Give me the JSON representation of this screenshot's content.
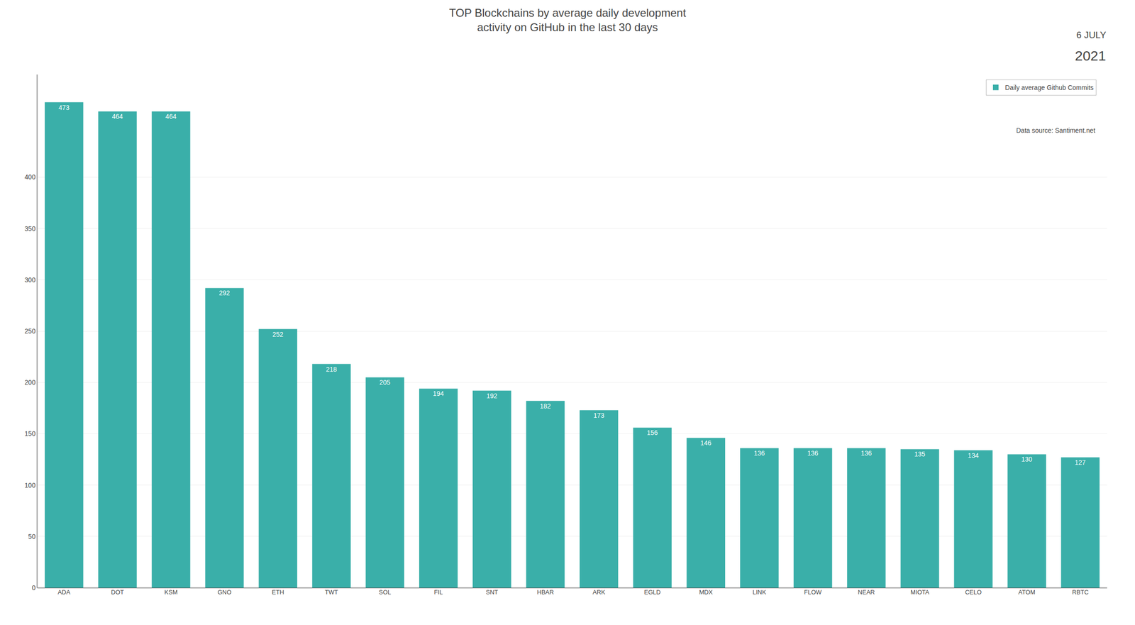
{
  "chart_data": {
    "type": "bar",
    "title": "TOP Blockchains by average daily development\nactivity on GitHub in the last 30 days",
    "categories": [
      "ADA",
      "DOT",
      "KSM",
      "GNO",
      "ETH",
      "TWT",
      "SOL",
      "FIL",
      "SNT",
      "HBAR",
      "ARK",
      "EGLD",
      "MDX",
      "LINK",
      "FLOW",
      "NEAR",
      "MIOTA",
      "CELO",
      "ATOM",
      "RBTC"
    ],
    "series": [
      {
        "name": "Daily average Github Commits",
        "color": "#3aafa9",
        "values": [
          473,
          464,
          464,
          292,
          252,
          218,
          205,
          194,
          192,
          182,
          173,
          156,
          146,
          136,
          136,
          136,
          135,
          134,
          130,
          127
        ]
      }
    ],
    "ylim": [
      0,
      500
    ],
    "yticks": [
      0,
      50,
      100,
      150,
      200,
      250,
      300,
      350,
      400
    ],
    "grid": true,
    "legend": "top right",
    "data_labels": true,
    "annotations": [
      "Data source: Santiment.net",
      "6 JULY",
      "2021"
    ]
  }
}
